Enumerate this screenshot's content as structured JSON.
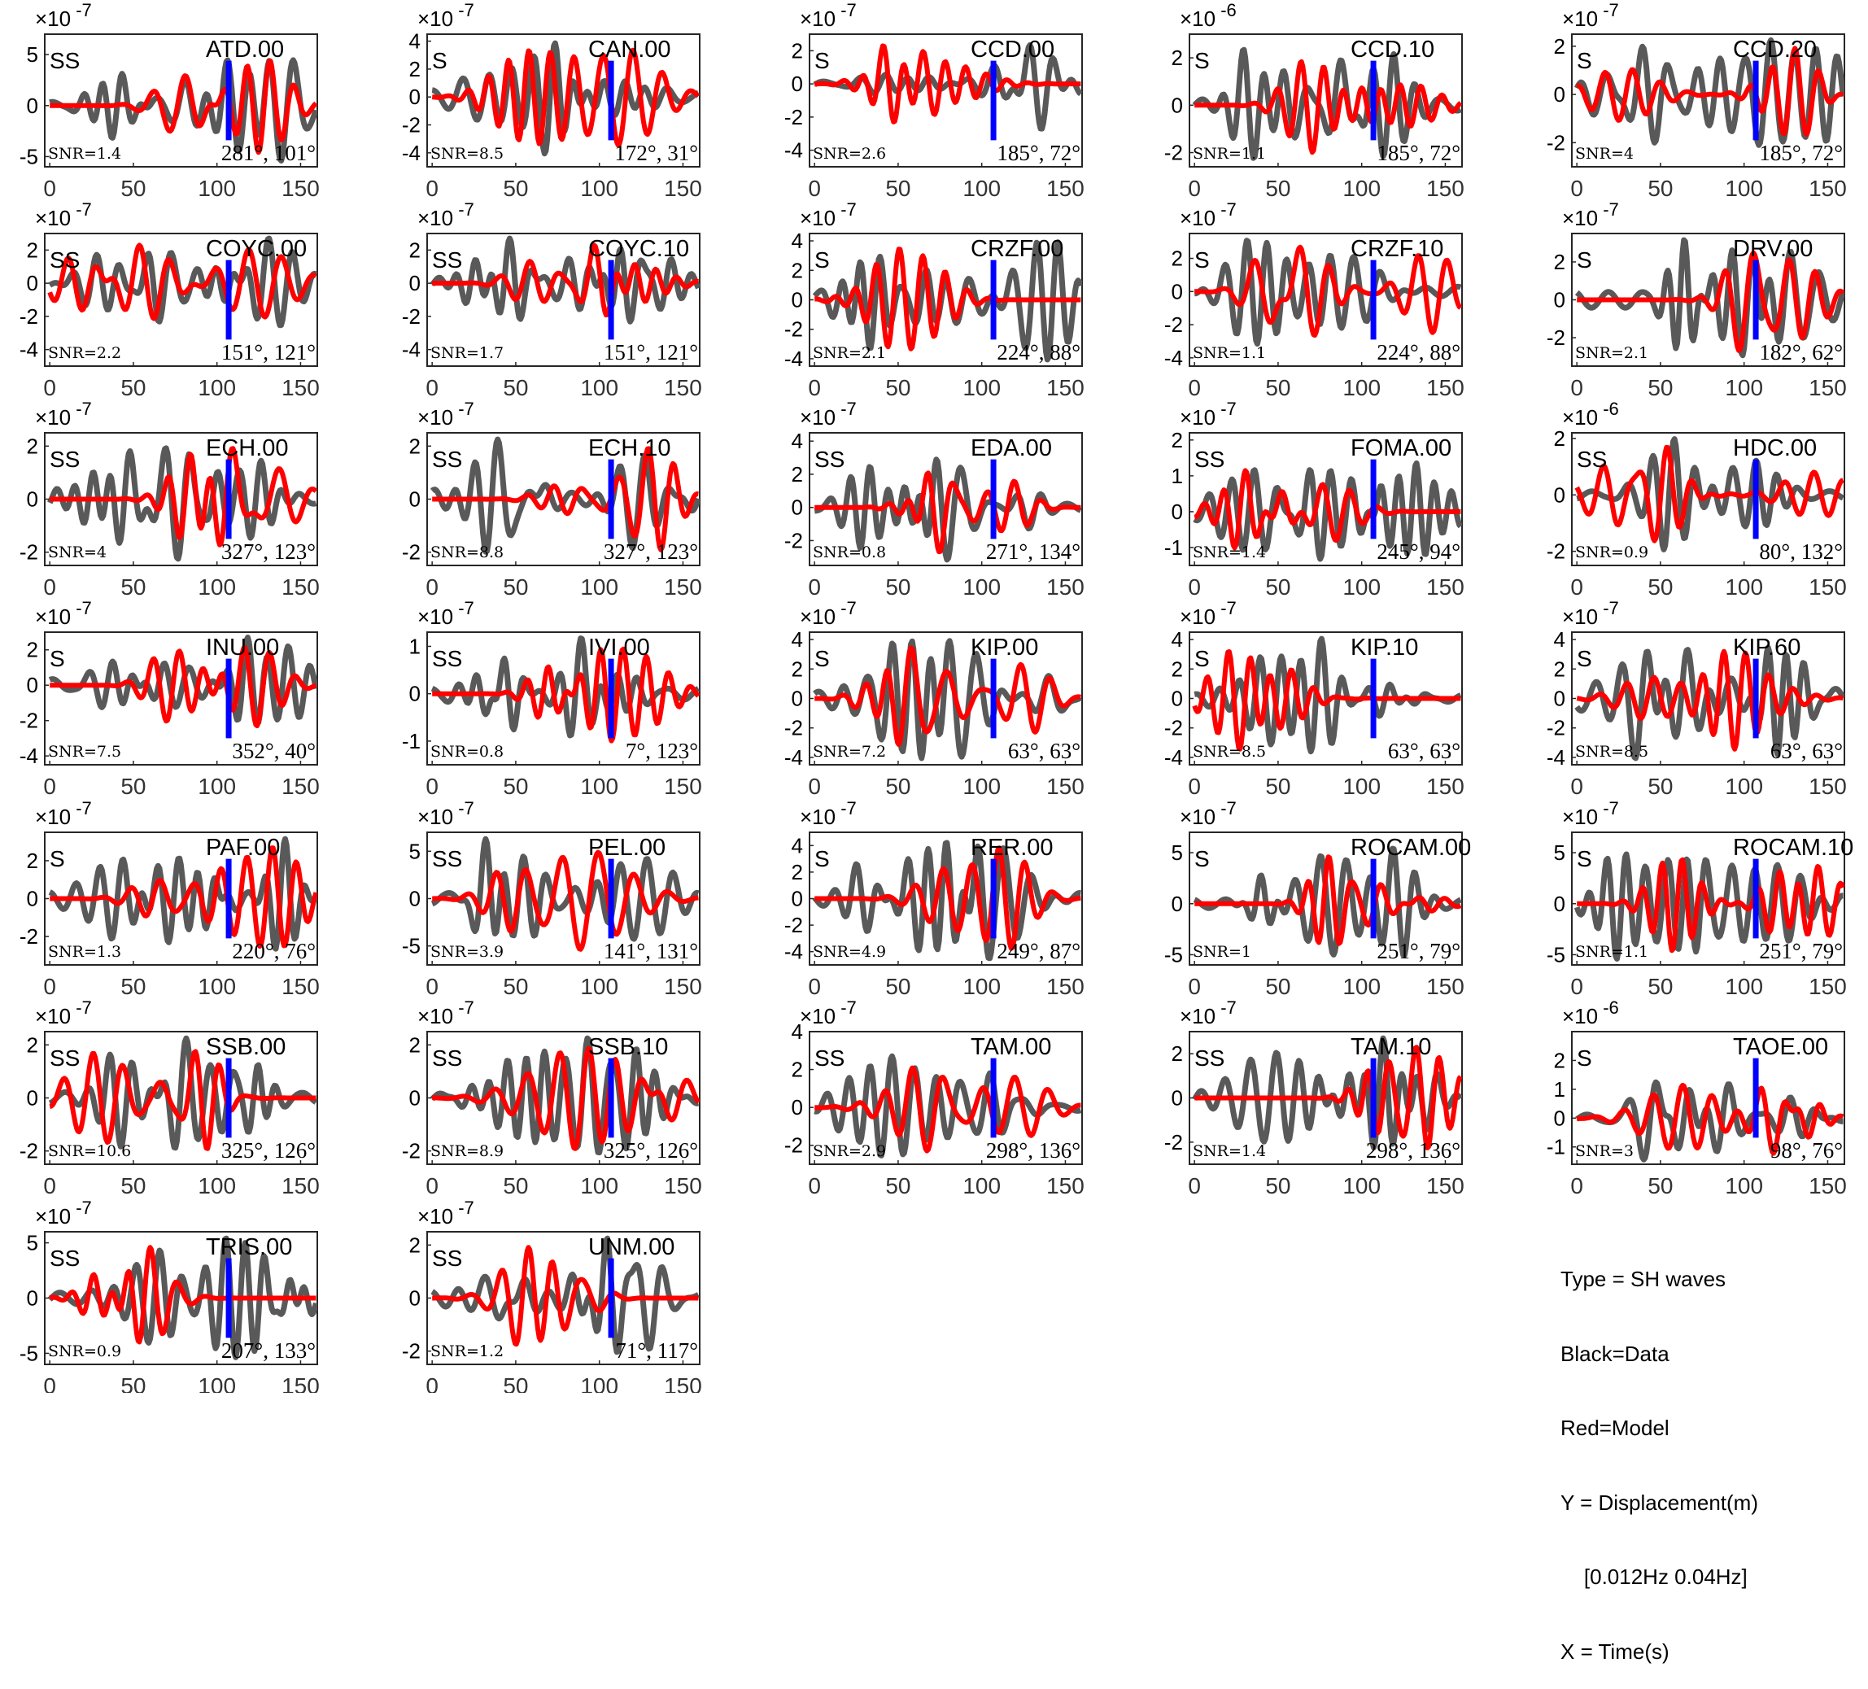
{
  "legend": {
    "type": "Type = SH waves",
    "black": "Black=Data",
    "red": "Red=Model",
    "y": "Y = Displacement(m)",
    "band": "    [0.012Hz 0.04Hz]",
    "x": "X = Time(s)"
  },
  "colors": {
    "data": "#595959",
    "model": "#ff0000",
    "marker": "#0000ff",
    "axis": "#262626",
    "tick": "#333333"
  },
  "x_ticks": [
    0,
    50,
    100,
    150
  ],
  "x_range": [
    -3,
    160
  ],
  "marker_t": 107,
  "chart_data": [
    {
      "type": "line",
      "station": "ATD.00",
      "phase": "SS",
      "snr": "SNR=1.4",
      "angles": "281°, 101°",
      "exponent": "-7",
      "yticks": [
        -5,
        0,
        5
      ],
      "ylim": [
        -6,
        7
      ]
    },
    {
      "type": "line",
      "station": "CAN.00",
      "phase": "S",
      "snr": "SNR=8.5",
      "angles": "172°, 31°",
      "exponent": "-7",
      "yticks": [
        -4,
        -2,
        0,
        2,
        4
      ],
      "ylim": [
        -5,
        4.5
      ]
    },
    {
      "type": "line",
      "station": "CCD.00",
      "phase": "S",
      "snr": "SNR=2.6",
      "angles": "185°, 72°",
      "exponent": "-7",
      "yticks": [
        -4,
        -2,
        0,
        2
      ],
      "ylim": [
        -5,
        3
      ]
    },
    {
      "type": "line",
      "station": "CCD.10",
      "phase": "S",
      "snr": "SNR=1.1",
      "angles": "185°, 72°",
      "exponent": "-6",
      "yticks": [
        -2,
        0,
        2
      ],
      "ylim": [
        -2.6,
        3
      ]
    },
    {
      "type": "line",
      "station": "CCD.20",
      "phase": "S",
      "snr": "SNR=4",
      "angles": "185°, 72°",
      "exponent": "-7",
      "yticks": [
        -2,
        0,
        2
      ],
      "ylim": [
        -3,
        2.5
      ]
    },
    {
      "type": "line",
      "station": "COYC.00",
      "phase": "SS",
      "snr": "SNR=2.2",
      "angles": "151°, 121°",
      "exponent": "-7",
      "yticks": [
        -4,
        -2,
        0,
        2
      ],
      "ylim": [
        -5,
        3
      ]
    },
    {
      "type": "line",
      "station": "COYC.10",
      "phase": "SS",
      "snr": "SNR=1.7",
      "angles": "151°, 121°",
      "exponent": "-7",
      "yticks": [
        -4,
        -2,
        0,
        2
      ],
      "ylim": [
        -5,
        3
      ]
    },
    {
      "type": "line",
      "station": "CRZF.00",
      "phase": "S",
      "snr": "SNR=2.1",
      "angles": "224°, 88°",
      "exponent": "-7",
      "yticks": [
        -4,
        -2,
        0,
        2,
        4
      ],
      "ylim": [
        -4.5,
        4.5
      ]
    },
    {
      "type": "line",
      "station": "CRZF.10",
      "phase": "S",
      "snr": "SNR=1.1",
      "angles": "224°, 88°",
      "exponent": "-7",
      "yticks": [
        -4,
        -2,
        0,
        2
      ],
      "ylim": [
        -4.5,
        3.5
      ]
    },
    {
      "type": "line",
      "station": "DRV.00",
      "phase": "S",
      "snr": "SNR=2.1",
      "angles": "182°, 62°",
      "exponent": "-7",
      "yticks": [
        -2,
        0,
        2
      ],
      "ylim": [
        -3.5,
        3.5
      ]
    },
    {
      "type": "line",
      "station": "ECH.00",
      "phase": "SS",
      "snr": "SNR=4",
      "angles": "327°, 123°",
      "exponent": "-7",
      "yticks": [
        -2,
        0,
        2
      ],
      "ylim": [
        -2.5,
        2.5
      ]
    },
    {
      "type": "line",
      "station": "ECH.10",
      "phase": "SS",
      "snr": "SNR=8.8",
      "angles": "327°, 123°",
      "exponent": "-7",
      "yticks": [
        -2,
        0,
        2
      ],
      "ylim": [
        -2.5,
        2.5
      ]
    },
    {
      "type": "line",
      "station": "EDA.00",
      "phase": "SS",
      "snr": "SNR=0.8",
      "angles": "271°, 134°",
      "exponent": "-7",
      "yticks": [
        -2,
        0,
        2,
        4
      ],
      "ylim": [
        -3.5,
        4.5
      ]
    },
    {
      "type": "line",
      "station": "FOMA.00",
      "phase": "SS",
      "snr": "SNR=1.4",
      "angles": "245°, 94°",
      "exponent": "-7",
      "yticks": [
        -1,
        0,
        1,
        2
      ],
      "ylim": [
        -1.5,
        2.2
      ]
    },
    {
      "type": "line",
      "station": "HDC.00",
      "phase": "SS",
      "snr": "SNR=0.9",
      "angles": "80°, 132°",
      "exponent": "-6",
      "yticks": [
        -2,
        0,
        2
      ],
      "ylim": [
        -2.5,
        2.2
      ]
    },
    {
      "type": "line",
      "station": "INU.00",
      "phase": "S",
      "snr": "SNR=7.5",
      "angles": "352°, 40°",
      "exponent": "-7",
      "yticks": [
        -4,
        -2,
        0,
        2
      ],
      "ylim": [
        -4.5,
        3
      ]
    },
    {
      "type": "line",
      "station": "IVI.00",
      "phase": "SS",
      "snr": "SNR=0.8",
      "angles": "7°, 123°",
      "exponent": "-7",
      "yticks": [
        -1,
        0,
        1
      ],
      "ylim": [
        -1.5,
        1.3
      ]
    },
    {
      "type": "line",
      "station": "KIP.00",
      "phase": "S",
      "snr": "SNR=7.2",
      "angles": "63°, 63°",
      "exponent": "-7",
      "yticks": [
        -4,
        -2,
        0,
        2,
        4
      ],
      "ylim": [
        -4.5,
        4.5
      ]
    },
    {
      "type": "line",
      "station": "KIP.10",
      "phase": "S",
      "snr": "SNR=8.5",
      "angles": "63°, 63°",
      "exponent": "-7",
      "yticks": [
        -4,
        -2,
        0,
        2,
        4
      ],
      "ylim": [
        -4.5,
        4.5
      ]
    },
    {
      "type": "line",
      "station": "KIP.60",
      "phase": "S",
      "snr": "SNR=8.5",
      "angles": "63°, 63°",
      "exponent": "-7",
      "yticks": [
        -4,
        -2,
        0,
        2,
        4
      ],
      "ylim": [
        -4.5,
        4.5
      ]
    },
    {
      "type": "line",
      "station": "PAF.00",
      "phase": "S",
      "snr": "SNR=1.3",
      "angles": "220°, 76°",
      "exponent": "-7",
      "yticks": [
        -2,
        0,
        2
      ],
      "ylim": [
        -3.5,
        3.5
      ]
    },
    {
      "type": "line",
      "station": "PEL.00",
      "phase": "SS",
      "snr": "SNR=3.9",
      "angles": "141°, 131°",
      "exponent": "-7",
      "yticks": [
        -5,
        0,
        5
      ],
      "ylim": [
        -7,
        7
      ]
    },
    {
      "type": "line",
      "station": "RER.00",
      "phase": "S",
      "snr": "SNR=4.9",
      "angles": "249°, 87°",
      "exponent": "-7",
      "yticks": [
        -4,
        -2,
        0,
        2,
        4
      ],
      "ylim": [
        -5,
        5
      ]
    },
    {
      "type": "line",
      "station": "ROCAM.00",
      "phase": "S",
      "snr": "SNR=1",
      "angles": "251°, 79°",
      "exponent": "-7",
      "yticks": [
        -5,
        0,
        5
      ],
      "ylim": [
        -6,
        7
      ]
    },
    {
      "type": "line",
      "station": "ROCAM.10",
      "phase": "S",
      "snr": "SNR=1.1",
      "angles": "251°, 79°",
      "exponent": "-7",
      "yticks": [
        -5,
        0,
        5
      ],
      "ylim": [
        -6,
        7
      ]
    },
    {
      "type": "line",
      "station": "SSB.00",
      "phase": "SS",
      "snr": "SNR=10.6",
      "angles": "325°, 126°",
      "exponent": "-7",
      "yticks": [
        -2,
        0,
        2
      ],
      "ylim": [
        -2.5,
        2.5
      ]
    },
    {
      "type": "line",
      "station": "SSB.10",
      "phase": "SS",
      "snr": "SNR=8.9",
      "angles": "325°, 126°",
      "exponent": "-7",
      "yticks": [
        -2,
        0,
        2
      ],
      "ylim": [
        -2.5,
        2.5
      ]
    },
    {
      "type": "line",
      "station": "TAM.00",
      "phase": "SS",
      "snr": "SNR=2.9",
      "angles": "298°, 136°",
      "exponent": "-7",
      "yticks": [
        -2,
        0,
        2,
        4
      ],
      "ylim": [
        -3,
        4
      ]
    },
    {
      "type": "line",
      "station": "TAM.10",
      "phase": "SS",
      "snr": "SNR=1.4",
      "angles": "298°, 136°",
      "exponent": "-7",
      "yticks": [
        -2,
        0,
        2
      ],
      "ylim": [
        -3,
        3
      ]
    },
    {
      "type": "line",
      "station": "TAOE.00",
      "phase": "S",
      "snr": "SNR=3",
      "angles": "98°, 76°",
      "exponent": "-6",
      "yticks": [
        -1,
        0,
        1,
        2
      ],
      "ylim": [
        -1.6,
        3
      ]
    },
    {
      "type": "line",
      "station": "TRIS.00",
      "phase": "SS",
      "snr": "SNR=0.9",
      "angles": "207°, 133°",
      "exponent": "-7",
      "yticks": [
        -5,
        0,
        5
      ],
      "ylim": [
        -6,
        6
      ]
    },
    {
      "type": "line",
      "station": "UNM.00",
      "phase": "SS",
      "snr": "SNR=1.2",
      "angles": "71°, 117°",
      "exponent": "-7",
      "yticks": [
        -2,
        0,
        2
      ],
      "ylim": [
        -2.5,
        2.5
      ]
    }
  ]
}
